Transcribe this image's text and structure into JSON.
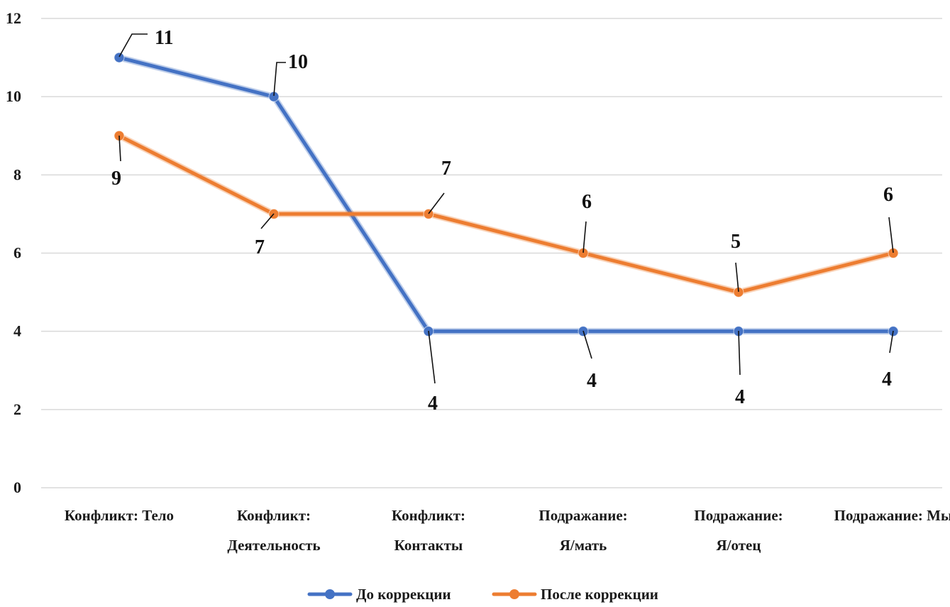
{
  "chart_data": {
    "type": "line",
    "categories": [
      [
        "Конфликт: Тело"
      ],
      [
        "Конфликт:",
        "Деятельность"
      ],
      [
        "Конфликт:",
        "Контакты"
      ],
      [
        "Подражание:",
        "Я/мать"
      ],
      [
        "Подражание:",
        "Я/отец"
      ],
      [
        "Подражание: Мы"
      ]
    ],
    "series": [
      {
        "name": "До коррекции",
        "color": "#4472C4",
        "values": [
          11,
          10,
          4,
          4,
          4,
          4
        ]
      },
      {
        "name": "После коррекции",
        "color": "#ED7D31",
        "values": [
          9,
          7,
          7,
          6,
          5,
          6
        ]
      }
    ],
    "ylim": [
      0,
      12
    ],
    "yticks": [
      0,
      2,
      4,
      6,
      8,
      10,
      12
    ],
    "grid": true,
    "legend": "bottom",
    "title": "",
    "xlabel": "",
    "ylabel": ""
  }
}
